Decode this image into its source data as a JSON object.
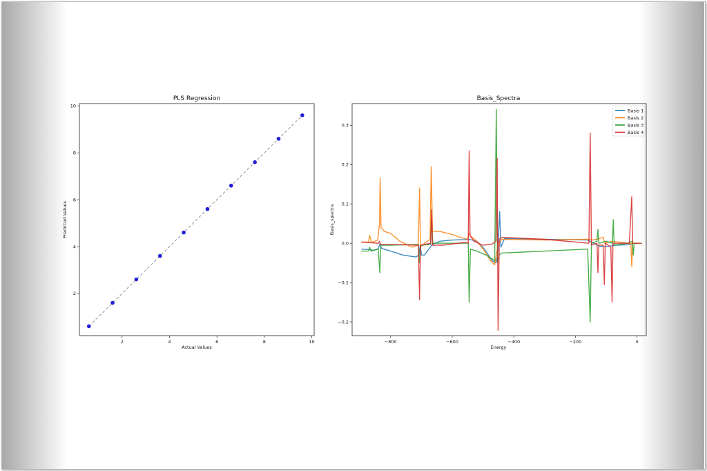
{
  "chart_data": [
    {
      "type": "scatter",
      "title": "PLS Regression",
      "xlabel": "Actual Values",
      "ylabel": "Predicted Values",
      "xlim": [
        0.2,
        10.1
      ],
      "ylim": [
        0.2,
        10.1
      ],
      "xticks": [
        "2",
        "4",
        "6",
        "8",
        "10"
      ],
      "yticks": [
        "2",
        "4",
        "6",
        "8",
        "10"
      ],
      "points": [
        [
          0.6,
          0.6
        ],
        [
          1.6,
          1.6
        ],
        [
          2.6,
          2.6
        ],
        [
          3.6,
          3.6
        ],
        [
          4.6,
          4.6
        ],
        [
          5.6,
          5.6
        ],
        [
          6.6,
          6.6
        ],
        [
          7.6,
          7.6
        ],
        [
          8.6,
          8.6
        ],
        [
          9.6,
          9.6
        ]
      ],
      "point_color": "#1f1fd6",
      "reference_line": {
        "from": [
          0.6,
          0.6
        ],
        "to": [
          9.6,
          9.6
        ],
        "style": "dashed",
        "color": "#888888"
      }
    },
    {
      "type": "line",
      "title": "Basis_Spectra",
      "xlabel": "Energy",
      "ylabel": "Basis_spectra",
      "xlim": [
        -925,
        30
      ],
      "ylim": [
        -0.235,
        0.355
      ],
      "xticks": [
        "−800",
        "−600",
        "−400",
        "−200",
        "0"
      ],
      "yticks": [
        "−0.2",
        "−0.1",
        "0.0",
        "0.1",
        "0.2",
        "0.3"
      ],
      "legend_position": "top-right",
      "series": [
        {
          "name": "Basis 1",
          "color": "#1f77b4",
          "points": [
            [
              -895,
              -0.015
            ],
            [
              -870,
              -0.016
            ],
            [
              -855,
              -0.018
            ],
            [
              -840,
              -0.014
            ],
            [
              -834,
              0.0
            ],
            [
              -830,
              -0.013
            ],
            [
              -800,
              -0.02
            ],
            [
              -760,
              -0.03
            ],
            [
              -735,
              -0.033
            ],
            [
              -718,
              -0.035
            ],
            [
              -708,
              -0.03
            ],
            [
              -704,
              -0.005
            ],
            [
              -700,
              -0.03
            ],
            [
              -690,
              -0.03
            ],
            [
              -665,
              -0.003
            ],
            [
              -640,
              0.005
            ],
            [
              -600,
              0.008
            ],
            [
              -560,
              0.009
            ],
            [
              -545,
              0.01
            ],
            [
              -520,
              0.005
            ],
            [
              -495,
              -0.015
            ],
            [
              -470,
              -0.045
            ],
            [
              -458,
              -0.05
            ],
            [
              -452,
              -0.03
            ],
            [
              -446,
              0.08
            ],
            [
              -442,
              -0.01
            ],
            [
              -430,
              0.012
            ],
            [
              -300,
              0.01
            ],
            [
              -160,
              0.008
            ],
            [
              -140,
              0.0
            ],
            [
              -120,
              -0.008
            ],
            [
              -95,
              -0.008
            ],
            [
              -70,
              -0.005
            ],
            [
              -30,
              -0.004
            ],
            [
              -10,
              0.0
            ],
            [
              15,
              0.0
            ]
          ]
        },
        {
          "name": "Basis 2",
          "color": "#ff7f0e",
          "points": [
            [
              -895,
              0.003
            ],
            [
              -872,
              0.003
            ],
            [
              -868,
              0.02
            ],
            [
              -862,
              0.002
            ],
            [
              -842,
              0.008
            ],
            [
              -836,
              0.05
            ],
            [
              -834,
              0.165
            ],
            [
              -831,
              0.04
            ],
            [
              -820,
              0.03
            ],
            [
              -800,
              0.025
            ],
            [
              -770,
              0.005
            ],
            [
              -730,
              -0.01
            ],
            [
              -710,
              -0.005
            ],
            [
              -706,
              0.14
            ],
            [
              -703,
              -0.01
            ],
            [
              -690,
              0.0
            ],
            [
              -672,
              0.01
            ],
            [
              -668,
              0.195
            ],
            [
              -664,
              0.03
            ],
            [
              -640,
              0.03
            ],
            [
              -600,
              0.022
            ],
            [
              -575,
              0.015
            ],
            [
              -550,
              0.01
            ],
            [
              -546,
              0.025
            ],
            [
              -543,
              0.02
            ],
            [
              -520,
              0.005
            ],
            [
              -495,
              -0.02
            ],
            [
              -475,
              -0.045
            ],
            [
              -462,
              -0.055
            ],
            [
              -455,
              -0.02
            ],
            [
              -450,
              0.0
            ],
            [
              -440,
              0.01
            ],
            [
              -300,
              0.008
            ],
            [
              -160,
              0.01
            ],
            [
              -145,
              0.008
            ],
            [
              -130,
              0.01
            ],
            [
              -110,
              0.015
            ],
            [
              -105,
              0.0
            ],
            [
              -80,
              0.005
            ],
            [
              -30,
              0.0
            ],
            [
              -20,
              0.0
            ],
            [
              -17,
              -0.06
            ],
            [
              -14,
              0.0
            ],
            [
              15,
              0.0
            ]
          ]
        },
        {
          "name": "Basis 3",
          "color": "#2ca02c",
          "points": [
            [
              -895,
              -0.02
            ],
            [
              -872,
              -0.02
            ],
            [
              -868,
              -0.01
            ],
            [
              -864,
              -0.02
            ],
            [
              -840,
              -0.015
            ],
            [
              -835,
              -0.075
            ],
            [
              -832,
              -0.005
            ],
            [
              -800,
              -0.005
            ],
            [
              -710,
              -0.003
            ],
            [
              -706,
              -0.05
            ],
            [
              -702,
              -0.005
            ],
            [
              -670,
              -0.003
            ],
            [
              -667,
              0.06
            ],
            [
              -663,
              0.0
            ],
            [
              -600,
              0.0
            ],
            [
              -548,
              0.0
            ],
            [
              -545,
              -0.15
            ],
            [
              -541,
              -0.015
            ],
            [
              -520,
              -0.02
            ],
            [
              -490,
              -0.03
            ],
            [
              -470,
              -0.04
            ],
            [
              -462,
              -0.045
            ],
            [
              -457,
              0.34
            ],
            [
              -453,
              -0.05
            ],
            [
              -447,
              -0.03
            ],
            [
              -440,
              -0.025
            ],
            [
              -300,
              -0.02
            ],
            [
              -160,
              -0.015
            ],
            [
              -152,
              -0.2
            ],
            [
              -148,
              0.0
            ],
            [
              -130,
              0.005
            ],
            [
              -127,
              0.035
            ],
            [
              -124,
              0.0
            ],
            [
              -100,
              0.005
            ],
            [
              -80,
              0.0
            ],
            [
              -77,
              0.06
            ],
            [
              -74,
              -0.005
            ],
            [
              -30,
              0.0
            ],
            [
              -15,
              0.005
            ],
            [
              -12,
              -0.03
            ],
            [
              -9,
              0.0
            ],
            [
              15,
              0.0
            ]
          ]
        },
        {
          "name": "Basis 4",
          "color": "#d62728",
          "points": [
            [
              -895,
              0.003
            ],
            [
              -840,
              0.0
            ],
            [
              -836,
              0.005
            ],
            [
              -832,
              -0.003
            ],
            [
              -800,
              -0.003
            ],
            [
              -710,
              -0.005
            ],
            [
              -706,
              -0.143
            ],
            [
              -703,
              -0.005
            ],
            [
              -670,
              0.0
            ],
            [
              -667,
              0.085
            ],
            [
              -664,
              -0.005
            ],
            [
              -630,
              -0.005
            ],
            [
              -560,
              0.002
            ],
            [
              -548,
              0.0
            ],
            [
              -545,
              0.235
            ],
            [
              -542,
              0.02
            ],
            [
              -530,
              0.005
            ],
            [
              -500,
              -0.005
            ],
            [
              -470,
              -0.002
            ],
            [
              -458,
              0.005
            ],
            [
              -454,
              0.215
            ],
            [
              -451,
              -0.222
            ],
            [
              -447,
              0.01
            ],
            [
              -440,
              0.015
            ],
            [
              -300,
              0.01
            ],
            [
              -156,
              0.0
            ],
            [
              -152,
              0.28
            ],
            [
              -148,
              -0.005
            ],
            [
              -130,
              0.0
            ],
            [
              -127,
              -0.075
            ],
            [
              -124,
              -0.005
            ],
            [
              -110,
              -0.005
            ],
            [
              -106,
              -0.105
            ],
            [
              -103,
              0.0
            ],
            [
              -85,
              -0.01
            ],
            [
              -81,
              -0.15
            ],
            [
              -78,
              0.0
            ],
            [
              -25,
              0.0
            ],
            [
              -17,
              0.118
            ],
            [
              -14,
              0.0
            ],
            [
              15,
              0.0
            ]
          ]
        }
      ]
    }
  ]
}
